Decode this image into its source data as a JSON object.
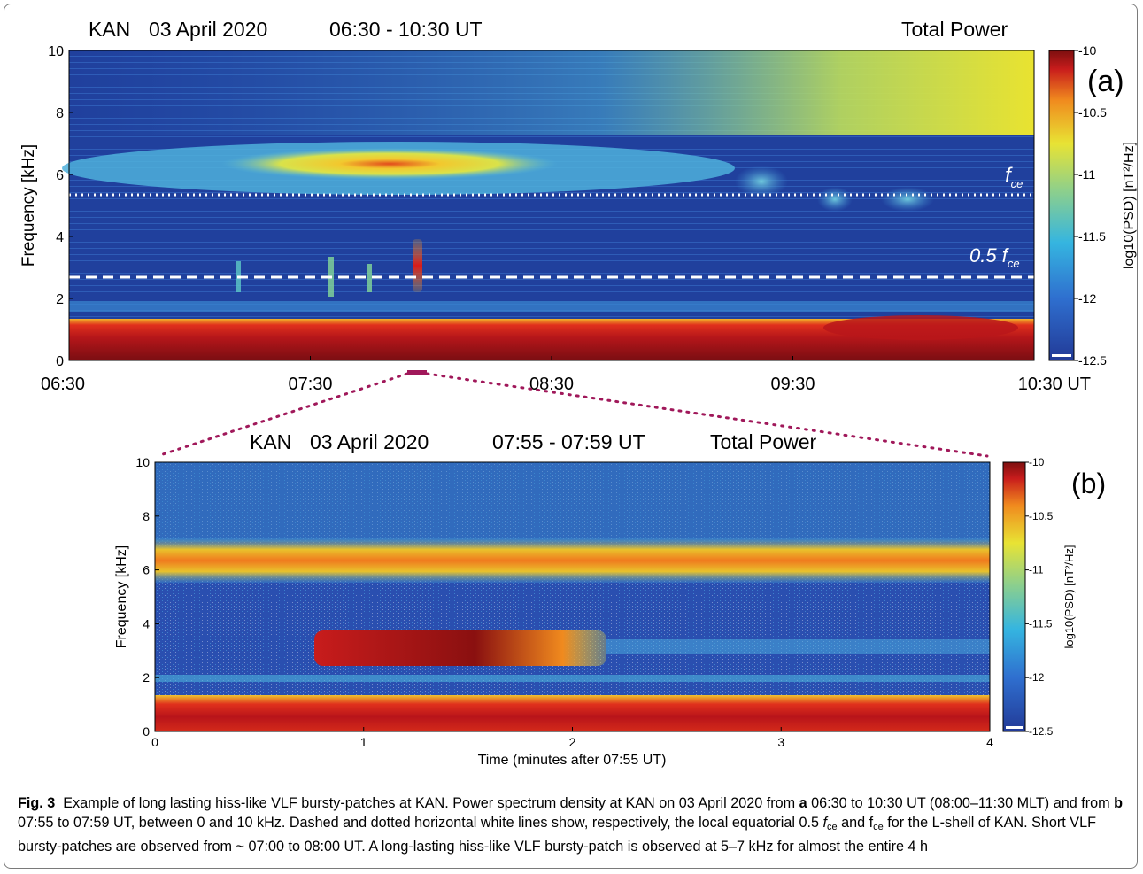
{
  "figure_label": "Fig. 3",
  "caption": {
    "seg1": "Example of long lasting hiss-like VLF bursty-patches at KAN. Power spectrum density at KAN on 03 April 2020 from",
    "bold_a": "a",
    "seg2": "06:30 to 10:30 UT (08:00–11:30 MLT) and from",
    "bold_b": "b",
    "seg3": "07:55 to 07:59 UT, between 0 and 10 kHz. Dashed and dotted horizontal white lines show, respectively, the local equatorial 0.5",
    "fce_f": "f",
    "fce_sub": "ce",
    "seg4": "and f",
    "fce_sub2": "ce",
    "seg5": "for the L-shell of KAN. Short VLF bursty-patches are observed from ~ 07:00 to 08:00 UT. A long-lasting hiss-like VLF bursty-patch is observed at 5–7 kHz for almost the entire 4 h"
  },
  "colors": {
    "bg_blue": "#1f3f9c",
    "red": "#c41a1a",
    "dark_red": "#7d0f0f",
    "yellow": "#e6e62e",
    "zoom_marker": "#a0185a"
  },
  "chart_data": [
    {
      "type": "heatmap",
      "panel_label": "(a)",
      "title_station": "KAN",
      "title_date": "03 April 2020",
      "title_time": "06:30 - 10:30 UT",
      "title_right": "Total Power",
      "ylabel": "Frequency [kHz]",
      "ylim": [
        0,
        10
      ],
      "yticks": [
        "0",
        "2",
        "4",
        "6",
        "8",
        "10"
      ],
      "xticks": [
        "06:30",
        "07:30",
        "08:30",
        "09:30",
        "10:30 UT"
      ],
      "colorbar_label": "log10(PSD) [nT²/Hz]",
      "colorbar_range": [
        -12.5,
        -10
      ],
      "colorbar_ticks": [
        "-10",
        "-10.5",
        "-11",
        "-11.5",
        "-12",
        "-12.5"
      ],
      "annotations": {
        "fce": {
          "f": "f",
          "sub": "ce",
          "freq_khz": 5.35
        },
        "half_fce": {
          "prefix": "0.5 ",
          "f": "f",
          "sub": "ce",
          "freq_khz": 2.68
        }
      }
    },
    {
      "type": "heatmap",
      "panel_label": "(b)",
      "title_station": "KAN",
      "title_date": "03 April 2020",
      "title_time": "07:55 - 07:59 UT",
      "title_right": "Total Power",
      "ylabel": "Frequency [kHz]",
      "xlabel": "Time (minutes after 07:55 UT)",
      "ylim": [
        0,
        10
      ],
      "xlim": [
        0,
        4
      ],
      "yticks": [
        "0",
        "2",
        "4",
        "6",
        "8",
        "10"
      ],
      "xticks": [
        "0",
        "1",
        "2",
        "3",
        "4"
      ],
      "colorbar_label": "log10(PSD) [nT²/Hz]",
      "colorbar_range": [
        -12.5,
        -10
      ],
      "colorbar_ticks": [
        "-10",
        "-10.5",
        "-11",
        "-11.5",
        "-12",
        "-12.5"
      ]
    }
  ]
}
